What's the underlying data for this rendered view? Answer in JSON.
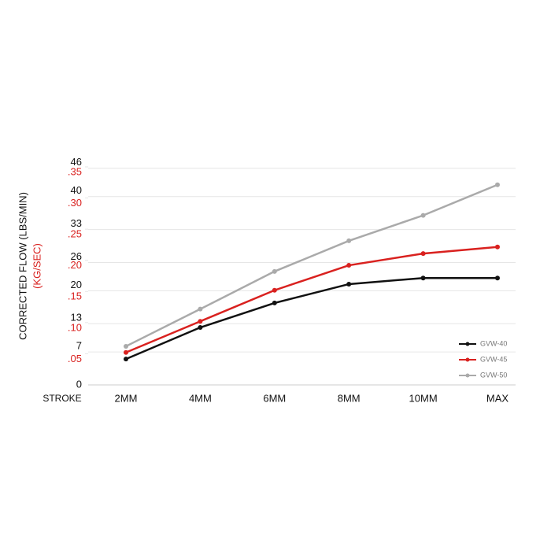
{
  "chart_data": {
    "type": "line",
    "y_label": "CORRECTED FLOW (LBS/MIN)",
    "y2_label": "(KG/SEC)",
    "x_label": "STROKE",
    "categories": [
      "2MM",
      "4MM",
      "6MM",
      "8MM",
      "10MM",
      "MAX"
    ],
    "ylim": [
      0,
      46.3
    ],
    "yticks": [
      0,
      7,
      13,
      20,
      26,
      33,
      40,
      46
    ],
    "y2lim": [
      0,
      0.35
    ],
    "y2ticks": [
      {
        "value": 0.05,
        "label": ".05"
      },
      {
        "value": 0.1,
        "label": ".10"
      },
      {
        "value": 0.15,
        "label": ".15"
      },
      {
        "value": 0.2,
        "label": ".20"
      },
      {
        "value": 0.25,
        "label": ".25"
      },
      {
        "value": 0.3,
        "label": ".30"
      },
      {
        "value": 0.35,
        "label": ".35"
      }
    ],
    "grid": true,
    "legend": "lower right",
    "series": [
      {
        "name": "GVW-40",
        "color": "#111111",
        "values": [
          5.5,
          12.2,
          17.4,
          21.4,
          22.7,
          22.7
        ]
      },
      {
        "name": "GVW-45",
        "color": "#d9211f",
        "values": [
          6.9,
          13.5,
          20.1,
          25.4,
          27.9,
          29.3
        ]
      },
      {
        "name": "GVW-50",
        "color": "#aaaaaa",
        "values": [
          8.2,
          16.1,
          24.1,
          30.6,
          36.0,
          42.5
        ]
      }
    ]
  }
}
